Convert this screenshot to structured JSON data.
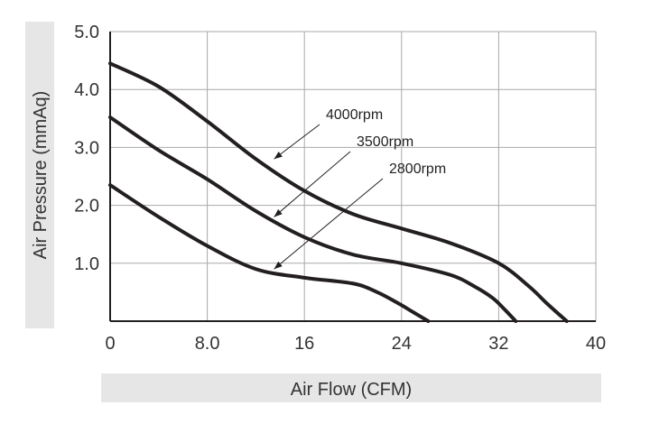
{
  "chart_data": {
    "type": "line",
    "xlabel": "Air Flow (CFM)",
    "ylabel": "Air Pressure (mmAq)",
    "xlim": [
      0,
      40
    ],
    "ylim": [
      0,
      5
    ],
    "x_ticks": [
      "0",
      "8.0",
      "16",
      "24",
      "32",
      "40"
    ],
    "y_ticks": [
      "",
      "1.0",
      "2.0",
      "3.0",
      "4.0",
      "5.0"
    ],
    "grid": true,
    "colors": {
      "curve": "#231f20",
      "grid": "#a8a8a8",
      "label_band": "#e6e6e6",
      "text": "#333333"
    },
    "series": [
      {
        "name": "4000rpm",
        "x": [
          0,
          4,
          8,
          12,
          16,
          20,
          24,
          28,
          32,
          34.5,
          36,
          37.6
        ],
        "y": [
          4.45,
          4.05,
          3.45,
          2.8,
          2.25,
          1.85,
          1.6,
          1.35,
          1.0,
          0.6,
          0.3,
          0
        ]
      },
      {
        "name": "3500rpm",
        "x": [
          0,
          4,
          8,
          12,
          16,
          20,
          24,
          28,
          30,
          31.5,
          32.5,
          33.4
        ],
        "y": [
          3.52,
          2.95,
          2.45,
          1.9,
          1.45,
          1.15,
          1.0,
          0.8,
          0.6,
          0.4,
          0.2,
          0
        ]
      },
      {
        "name": "2800rpm",
        "x": [
          0,
          4,
          8,
          12,
          16,
          20,
          22,
          23.8,
          25,
          26.2
        ],
        "y": [
          2.35,
          1.8,
          1.3,
          0.9,
          0.75,
          0.65,
          0.5,
          0.3,
          0.15,
          0
        ]
      }
    ],
    "annotations": [
      {
        "text": "4000rpm",
        "arrow_to": [
          13.5,
          2.8
        ]
      },
      {
        "text": "3500rpm",
        "arrow_to": [
          13.5,
          1.8
        ]
      },
      {
        "text": "2800rpm",
        "arrow_to": [
          13.5,
          0.9
        ]
      }
    ]
  }
}
